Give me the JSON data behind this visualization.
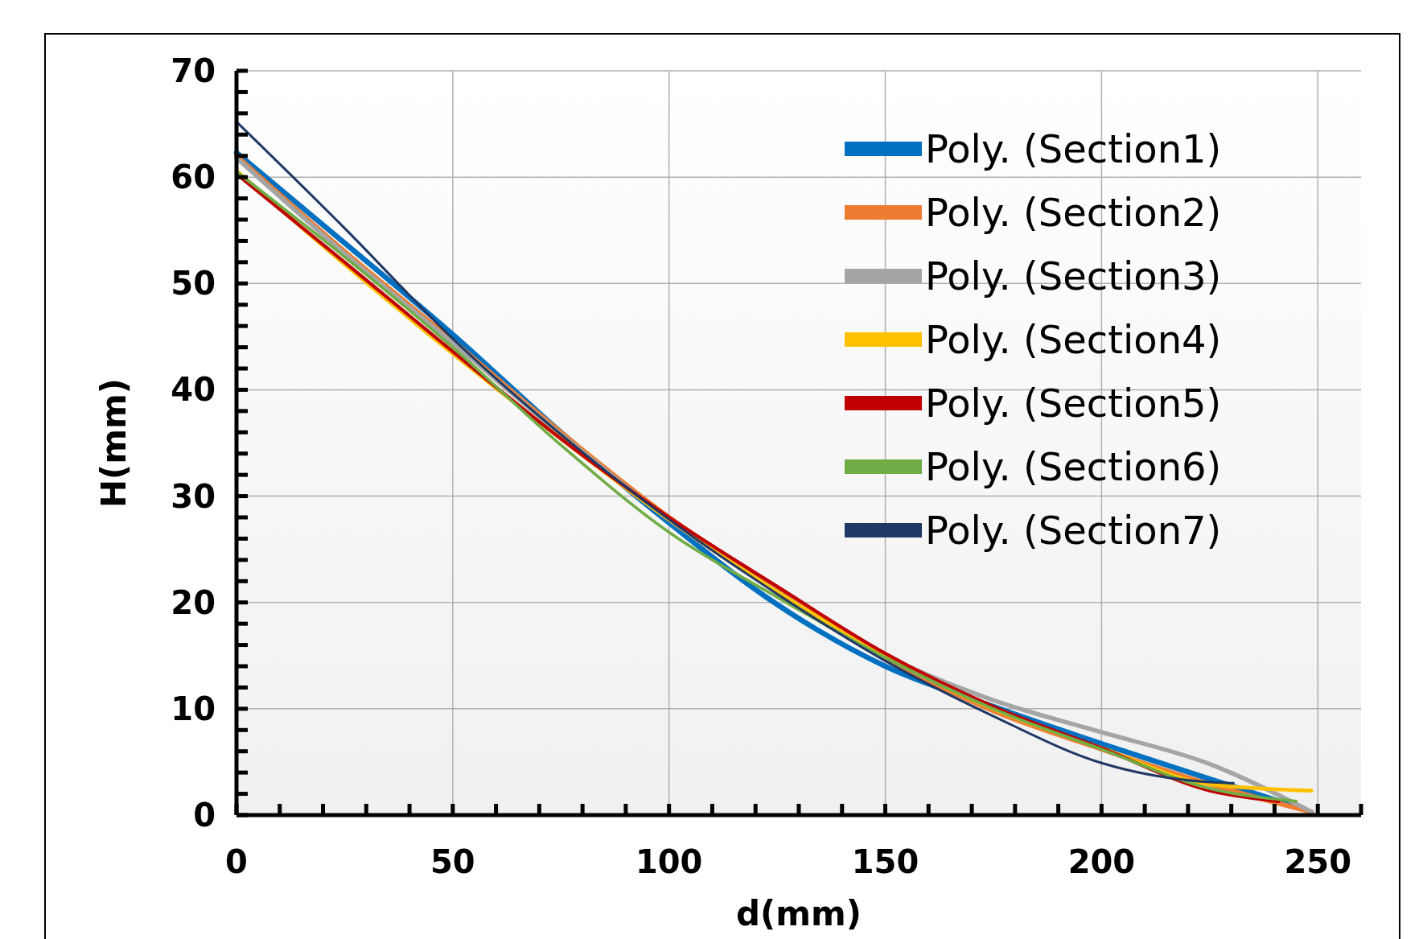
{
  "chart_data": {
    "type": "line",
    "xlabel": "d(mm)",
    "ylabel": "H(mm)",
    "xlim": [
      0,
      260
    ],
    "ylim": [
      0,
      70
    ],
    "xticks": [
      0,
      {
        "value": 10,
        "label": null
      },
      {
        "value": 20,
        "label": null
      },
      {
        "value": 30,
        "label": null
      },
      {
        "value": 40,
        "label": null
      },
      50,
      {
        "value": 60,
        "label": null
      },
      {
        "value": 70,
        "label": null
      },
      {
        "value": 80,
        "label": null
      },
      {
        "value": 90,
        "label": null
      },
      100,
      {
        "value": 110,
        "label": null
      },
      {
        "value": 120,
        "label": null
      },
      {
        "value": 130,
        "label": null
      },
      {
        "value": 140,
        "label": null
      },
      150,
      {
        "value": 160,
        "label": null
      },
      {
        "value": 170,
        "label": null
      },
      {
        "value": 180,
        "label": null
      },
      {
        "value": 190,
        "label": null
      },
      200,
      {
        "value": 210,
        "label": null
      },
      {
        "value": 220,
        "label": null
      },
      {
        "value": 230,
        "label": null
      },
      {
        "value": 240,
        "label": null
      },
      250,
      {
        "value": 260,
        "label": null
      }
    ],
    "yticks": [
      0,
      {
        "value": 2,
        "label": null
      },
      {
        "value": 4,
        "label": null
      },
      {
        "value": 6,
        "label": null
      },
      {
        "value": 8,
        "label": null
      },
      10,
      {
        "value": 12,
        "label": null
      },
      {
        "value": 14,
        "label": null
      },
      {
        "value": 16,
        "label": null
      },
      {
        "value": 18,
        "label": null
      },
      20,
      {
        "value": 22,
        "label": null
      },
      {
        "value": 24,
        "label": null
      },
      {
        "value": 26,
        "label": null
      },
      {
        "value": 28,
        "label": null
      },
      30,
      {
        "value": 32,
        "label": null
      },
      {
        "value": 34,
        "label": null
      },
      {
        "value": 36,
        "label": null
      },
      {
        "value": 38,
        "label": null
      },
      40,
      {
        "value": 42,
        "label": null
      },
      {
        "value": 44,
        "label": null
      },
      {
        "value": 46,
        "label": null
      },
      {
        "value": 48,
        "label": null
      },
      50,
      {
        "value": 52,
        "label": null
      },
      {
        "value": 54,
        "label": null
      },
      {
        "value": 56,
        "label": null
      },
      {
        "value": 58,
        "label": null
      },
      60,
      {
        "value": 62,
        "label": null
      },
      {
        "value": 64,
        "label": null
      },
      {
        "value": 66,
        "label": null
      },
      {
        "value": 68,
        "label": null
      },
      70
    ],
    "grid": true,
    "legend": "top right",
    "marker": "none",
    "line_style": "solid",
    "series": [
      {
        "name": "Poly. (Section1)",
        "color": "#0070c0",
        "x": [
          0,
          25,
          50,
          75,
          100,
          125,
          150,
          175,
          200,
          225,
          244.8
        ],
        "values": [
          62.3,
          53.8,
          45.2,
          36,
          27.5,
          19.8,
          14,
          10.2,
          6.7,
          3.4,
          0.8
        ]
      },
      {
        "name": "Poly. (Section2)",
        "color": "#ed7d31",
        "x": [
          0,
          25,
          50,
          75,
          100,
          125,
          150,
          175,
          200,
          225,
          248.6
        ],
        "values": [
          62,
          53,
          44.6,
          36,
          28,
          21.3,
          14.8,
          9.8,
          6.2,
          2.9,
          0.3
        ]
      },
      {
        "name": "Poly. (Section3)",
        "color": "#a5a5a5",
        "x": [
          0,
          25,
          50,
          75,
          100,
          125,
          150,
          175,
          200,
          225,
          248.6
        ],
        "values": [
          61.8,
          52.8,
          44.4,
          35.8,
          27.8,
          21,
          15,
          10.8,
          7.8,
          4.8,
          0.3
        ]
      },
      {
        "name": "Poly. (Section4)",
        "color": "#ffc000",
        "x": [
          0,
          25,
          50,
          75,
          100,
          125,
          150,
          175,
          200,
          225,
          248.5
        ],
        "values": [
          60.6,
          51.8,
          43.4,
          35.4,
          27.8,
          21,
          15,
          10,
          6.3,
          2.9,
          2.3
        ]
      },
      {
        "name": "Poly. (Section5)",
        "color": "#c00000",
        "x": [
          0,
          25,
          50,
          75,
          100,
          125,
          150,
          175,
          200,
          225,
          241
        ],
        "values": [
          60.3,
          52,
          43.6,
          35.4,
          28,
          21.5,
          15.2,
          10.2,
          6.3,
          2.3,
          1.3
        ]
      },
      {
        "name": "Poly. (Section6)",
        "color": "#70ad47",
        "x": [
          0,
          25,
          50,
          75,
          100,
          125,
          150,
          175,
          200,
          225,
          245
        ],
        "values": [
          60.5,
          52.5,
          44,
          34.8,
          26.6,
          20.5,
          14.8,
          10,
          6.2,
          2.5,
          1.3
        ]
      },
      {
        "name": "Poly. (Section7)",
        "color": "#203864",
        "x": [
          0,
          25,
          50,
          75,
          100,
          125,
          150,
          175,
          200,
          225,
          230.5
        ],
        "values": [
          65.2,
          55.2,
          44.8,
          35.8,
          27.8,
          20.8,
          14.5,
          9.3,
          4.9,
          3.1,
          3
        ]
      }
    ]
  }
}
